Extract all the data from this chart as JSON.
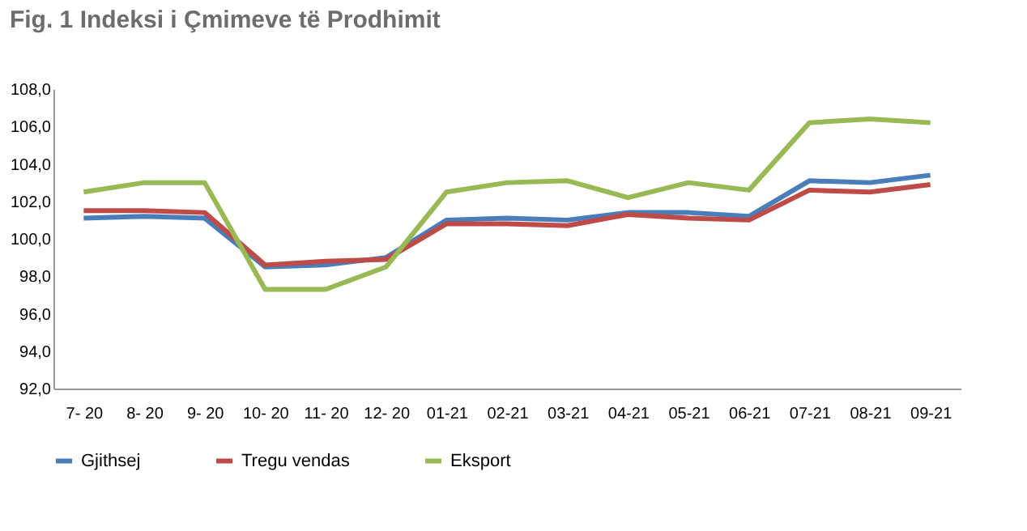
{
  "chart_data": {
    "type": "line",
    "title": "Fig. 1 Indeksi i Çmimeve të Prodhimit",
    "categories": [
      "7- 20",
      "8- 20",
      "9- 20",
      "10- 20",
      "11- 20",
      "12- 20",
      "01-21",
      "02-21",
      "03-21",
      "04-21",
      "05-21",
      "06-21",
      "07-21",
      "08-21",
      "09-21"
    ],
    "series": [
      {
        "name": "Gjithsej",
        "color": "#4a7ebb",
        "values": [
          101.1,
          101.2,
          101.1,
          98.5,
          98.6,
          99.0,
          101.0,
          101.1,
          101.0,
          101.4,
          101.4,
          101.2,
          103.1,
          103.0,
          103.4
        ]
      },
      {
        "name": "Tregu vendas",
        "color": "#be4b48",
        "values": [
          101.5,
          101.5,
          101.4,
          98.6,
          98.8,
          98.9,
          100.8,
          100.8,
          100.7,
          101.3,
          101.1,
          101.0,
          102.6,
          102.5,
          102.9
        ]
      },
      {
        "name": "Eksport",
        "color": "#98b954",
        "values": [
          102.5,
          103.0,
          103.0,
          97.3,
          97.3,
          98.5,
          102.5,
          103.0,
          103.1,
          102.2,
          103.0,
          102.6,
          106.2,
          106.4,
          106.2
        ]
      }
    ],
    "ylim": [
      92,
      108
    ],
    "yticks": [
      {
        "value": 92,
        "label": "92,0"
      },
      {
        "value": 94,
        "label": "94,0"
      },
      {
        "value": 96,
        "label": "96,0"
      },
      {
        "value": 98,
        "label": "98,0"
      },
      {
        "value": 100,
        "label": "100,0"
      },
      {
        "value": 102,
        "label": "102,0"
      },
      {
        "value": 104,
        "label": "104,0"
      },
      {
        "value": 106,
        "label": "106,0"
      },
      {
        "value": 108,
        "label": "108,0"
      }
    ],
    "grid": false,
    "legend": "bottom",
    "marker": "none",
    "line_style": "solid"
  }
}
